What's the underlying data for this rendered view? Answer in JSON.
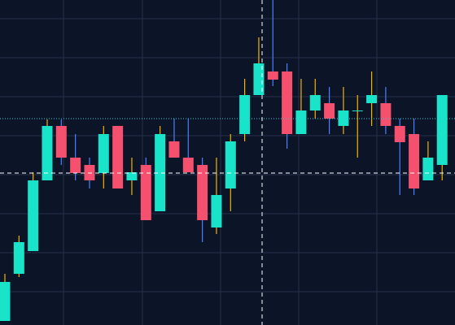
{
  "chart_data": {
    "type": "candlestick",
    "open": [
      5,
      63,
      91,
      178,
      245,
      206,
      197,
      187,
      245,
      178,
      197,
      140,
      226,
      206,
      197,
      120,
      168,
      235,
      283,
      312,
      312,
      235,
      264,
      273,
      245,
      263,
      273,
      273,
      245,
      235,
      178,
      197
    ],
    "high": [
      63,
      110,
      188,
      253,
      253,
      235,
      206,
      245,
      245,
      206,
      206,
      245,
      254,
      254,
      206,
      206,
      235,
      303,
      354,
      400,
      322,
      303,
      303,
      293,
      293,
      283,
      312,
      293,
      254,
      254,
      226,
      283
    ],
    "low": [
      5,
      59,
      91,
      178,
      197,
      178,
      168,
      168,
      168,
      160,
      129,
      140,
      206,
      188,
      102,
      112,
      140,
      226,
      283,
      294,
      217,
      235,
      254,
      235,
      235,
      206,
      245,
      235,
      160,
      160,
      178,
      178
    ],
    "close": [
      53,
      102,
      178,
      245,
      206,
      187,
      178,
      235,
      168,
      188,
      129,
      235,
      206,
      188,
      129,
      160,
      226,
      283,
      322,
      302,
      235,
      264,
      283,
      254,
      264,
      264,
      283,
      245,
      225,
      168,
      206,
      283
    ],
    "up_color": "#19e3c8",
    "down_color": "#f5506e",
    "up_wick_color": "#f5b400",
    "down_wick_color": "#4d7fff",
    "ylim": [
      0,
      400
    ],
    "yticks": [
      41,
      89,
      137,
      185,
      233,
      281,
      329,
      377
    ],
    "grid": true
  }
}
